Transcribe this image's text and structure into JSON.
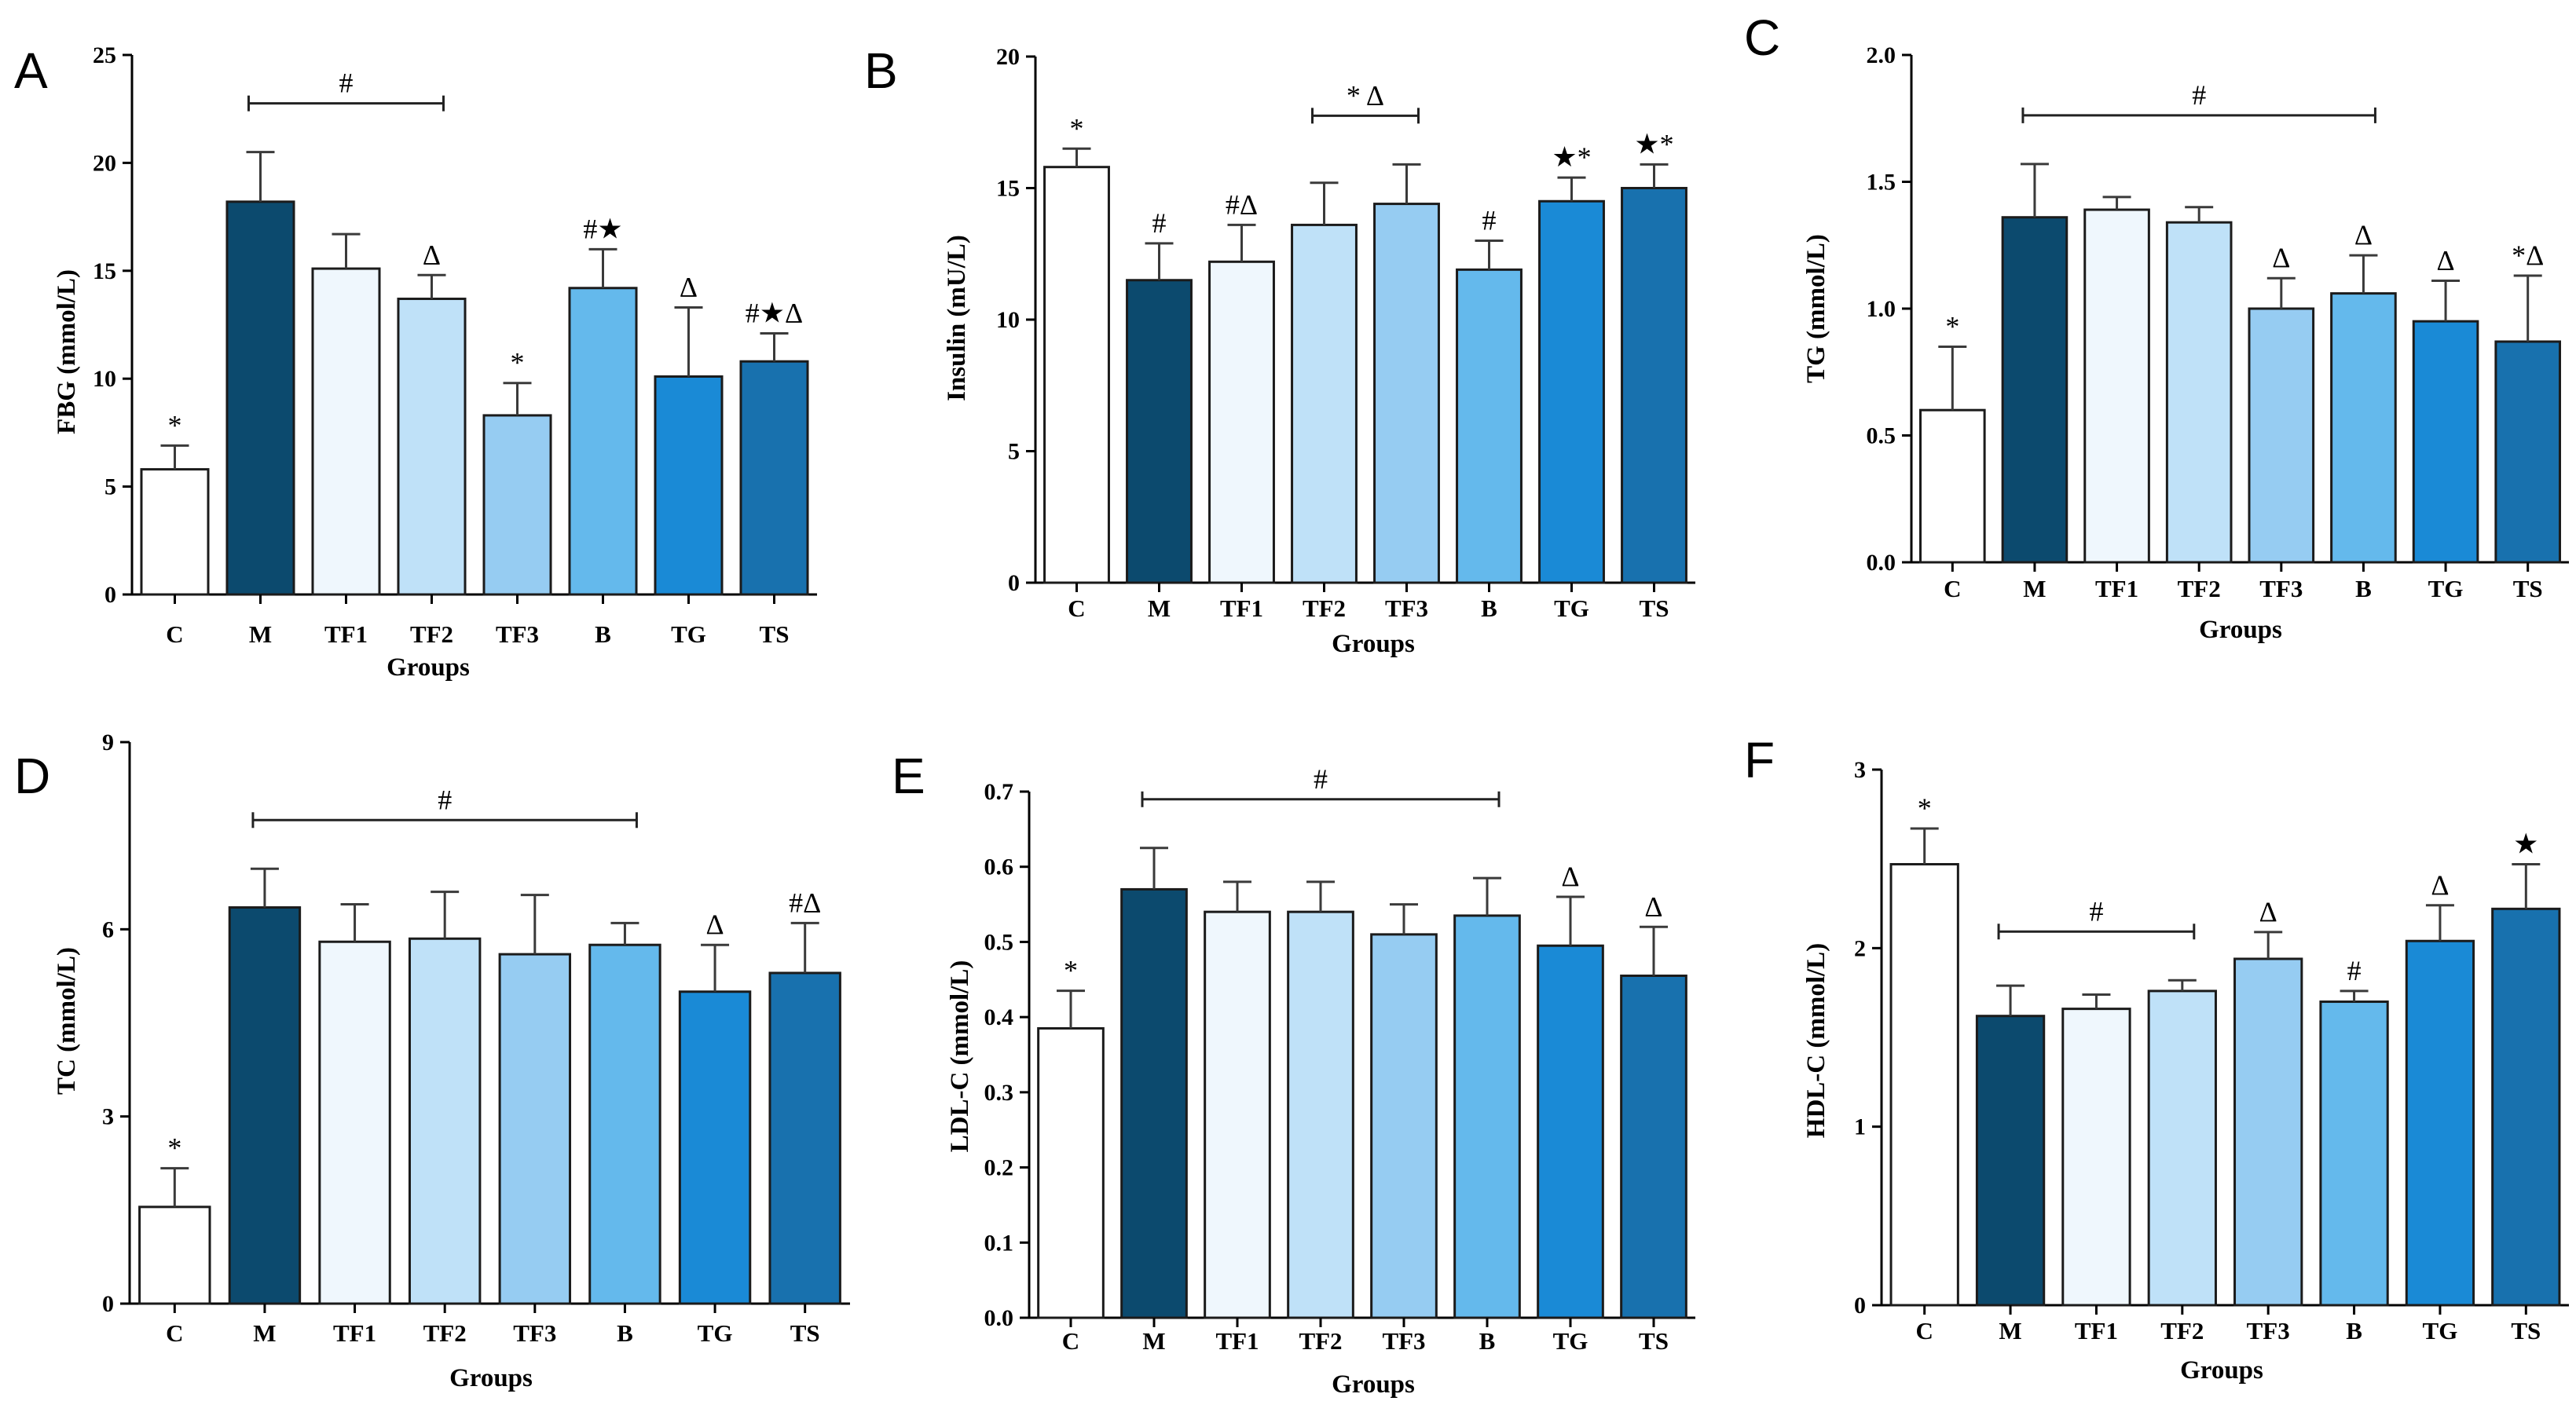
{
  "figure": {
    "panels": [
      "A",
      "B",
      "C",
      "D",
      "E",
      "F"
    ],
    "bar_colors": [
      "#ffffff",
      "#0c4a6e",
      "#eff7fd",
      "#bfe1f8",
      "#96ccf2",
      "#64b9ec",
      "#1a8ad6",
      "#1871ae"
    ]
  },
  "chart_data": [
    {
      "type": "bar",
      "panel": "A",
      "categories": [
        "C",
        "M",
        "TF1",
        "TF2",
        "TF3",
        "B",
        "TG",
        "TS"
      ],
      "values": [
        5.8,
        18.2,
        15.1,
        13.7,
        8.3,
        14.2,
        10.1,
        10.8
      ],
      "errors": [
        1.1,
        2.3,
        1.6,
        1.1,
        1.5,
        1.8,
        3.2,
        1.3
      ],
      "annotations": [
        "*",
        "",
        "",
        "Δ",
        "*",
        "#★",
        "Δ",
        "#★Δ"
      ],
      "bracket": {
        "from": "M",
        "to": "TF2",
        "label": "#"
      },
      "xlabel": "Groups",
      "ylabel": "FBG (mmol/L)",
      "ylim": [
        0,
        25
      ],
      "yticks": [
        "0",
        "5",
        "10",
        "15",
        "20",
        "25"
      ]
    },
    {
      "type": "bar",
      "panel": "B",
      "categories": [
        "C",
        "M",
        "TF1",
        "TF2",
        "TF3",
        "B",
        "TG",
        "TS"
      ],
      "values": [
        15.8,
        11.5,
        12.2,
        13.6,
        14.4,
        11.9,
        14.5,
        15.0
      ],
      "errors": [
        0.7,
        1.4,
        1.4,
        1.6,
        1.5,
        1.1,
        0.9,
        0.9
      ],
      "annotations": [
        "*",
        "#",
        "#Δ",
        "",
        "",
        "#",
        "★*",
        "★*"
      ],
      "bracket": {
        "from": "TF2",
        "to": "TF3",
        "label": "* Δ"
      },
      "xlabel": "Groups",
      "ylabel": "Insulin (mU/L)",
      "ylim": [
        0,
        20
      ],
      "yticks": [
        "0",
        "5",
        "10",
        "15",
        "20"
      ]
    },
    {
      "type": "bar",
      "panel": "C",
      "categories": [
        "C",
        "M",
        "TF1",
        "TF2",
        "TF3",
        "B",
        "TG",
        "TS"
      ],
      "values": [
        0.6,
        1.36,
        1.39,
        1.34,
        1.0,
        1.06,
        0.95,
        0.87
      ],
      "errors": [
        0.25,
        0.21,
        0.05,
        0.06,
        0.12,
        0.15,
        0.16,
        0.26
      ],
      "annotations": [
        "*",
        "",
        "",
        "",
        "Δ",
        "Δ",
        "Δ",
        "*Δ"
      ],
      "bracket": {
        "from": "M",
        "to": "B",
        "label": "#"
      },
      "xlabel": "Groups",
      "ylabel": "TG (mmol/L)",
      "ylim": [
        0,
        2.0
      ],
      "yticks": [
        "0.0",
        "0.5",
        "1.0",
        "1.5",
        "2.0"
      ]
    },
    {
      "type": "bar",
      "panel": "D",
      "categories": [
        "C",
        "M",
        "TF1",
        "TF2",
        "TF3",
        "B",
        "TG",
        "TS"
      ],
      "values": [
        1.55,
        6.35,
        5.8,
        5.85,
        5.6,
        5.75,
        5.0,
        5.3
      ],
      "errors": [
        0.62,
        0.62,
        0.6,
        0.75,
        0.95,
        0.35,
        0.75,
        0.8
      ],
      "annotations": [
        "*",
        "",
        "",
        "",
        "",
        "",
        "Δ",
        "#Δ"
      ],
      "bracket": {
        "from": "M",
        "to": "B",
        "label": "#"
      },
      "xlabel": "Groups",
      "ylabel": "TC (mmol/L)",
      "ylim": [
        0,
        9
      ],
      "yticks": [
        "0",
        "3",
        "6",
        "9"
      ]
    },
    {
      "type": "bar",
      "panel": "E",
      "categories": [
        "C",
        "M",
        "TF1",
        "TF2",
        "TF3",
        "B",
        "TG",
        "TS"
      ],
      "values": [
        0.385,
        0.57,
        0.54,
        0.54,
        0.51,
        0.535,
        0.495,
        0.455
      ],
      "errors": [
        0.05,
        0.055,
        0.04,
        0.04,
        0.04,
        0.05,
        0.065,
        0.065
      ],
      "annotations": [
        "*",
        "",
        "",
        "",
        "",
        "",
        "Δ",
        "Δ"
      ],
      "bracket": {
        "from": "M",
        "to": "B",
        "label": "#"
      },
      "xlabel": "Groups",
      "ylabel": "LDL-C (mmol/L)",
      "ylim": [
        0,
        0.7
      ],
      "yticks": [
        "0.0",
        "0.1",
        "0.2",
        "0.3",
        "0.4",
        "0.5",
        "0.6",
        "0.7"
      ]
    },
    {
      "type": "bar",
      "panel": "F",
      "categories": [
        "C",
        "M",
        "TF1",
        "TF2",
        "TF3",
        "B",
        "TG",
        "TS"
      ],
      "values": [
        2.47,
        1.62,
        1.66,
        1.76,
        1.94,
        1.7,
        2.04,
        2.22
      ],
      "errors": [
        0.2,
        0.17,
        0.08,
        0.06,
        0.15,
        0.06,
        0.2,
        0.25
      ],
      "annotations": [
        "*",
        "",
        "",
        "",
        "Δ",
        "#",
        "Δ",
        "★"
      ],
      "bracket": {
        "from": "M",
        "to": "TF2",
        "label": "#"
      },
      "xlabel": "Groups",
      "ylabel": "HDL-C (mmol/L)",
      "ylim": [
        0,
        3
      ],
      "yticks": [
        "0",
        "1",
        "2",
        "3"
      ]
    }
  ]
}
